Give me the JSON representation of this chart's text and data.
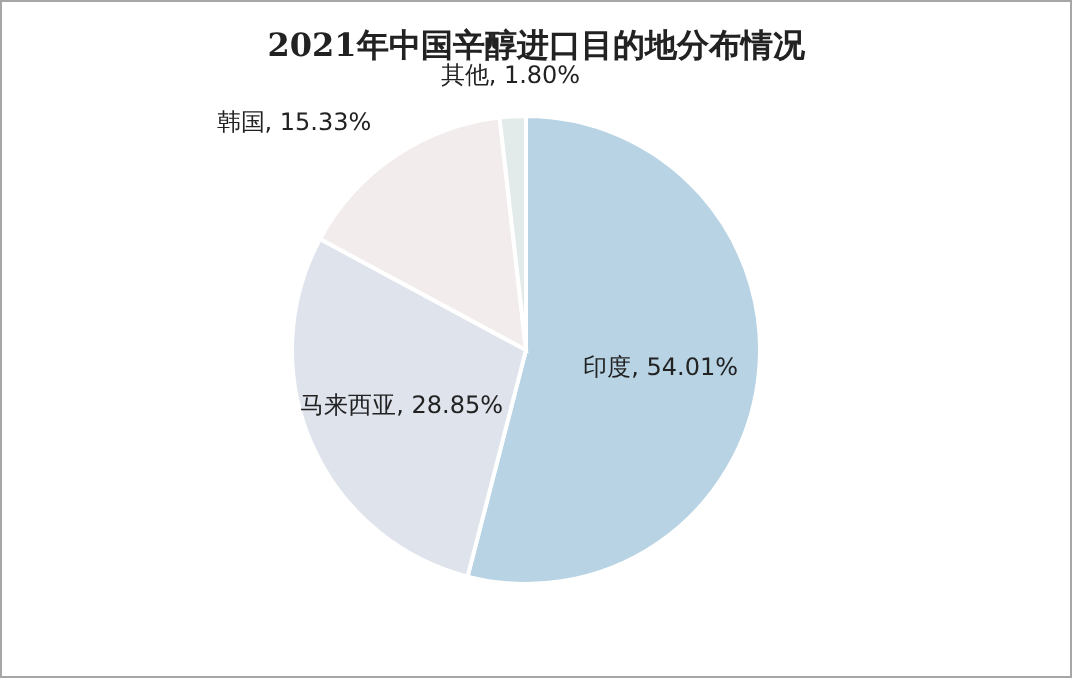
{
  "chart_data": {
    "type": "pie",
    "title": "2021年中国辛醇进口目的地分布情况",
    "categories": [
      "印度",
      "马来西亚",
      "韩国",
      "其他"
    ],
    "values": [
      54.01,
      28.85,
      15.33,
      1.8
    ],
    "value_labels": [
      "54.01%",
      "28.85%",
      "15.33%",
      "1.80%"
    ],
    "colors": [
      "#b8d3e4",
      "#dfe3ec",
      "#f3ecec",
      "#e2ebe9"
    ]
  }
}
